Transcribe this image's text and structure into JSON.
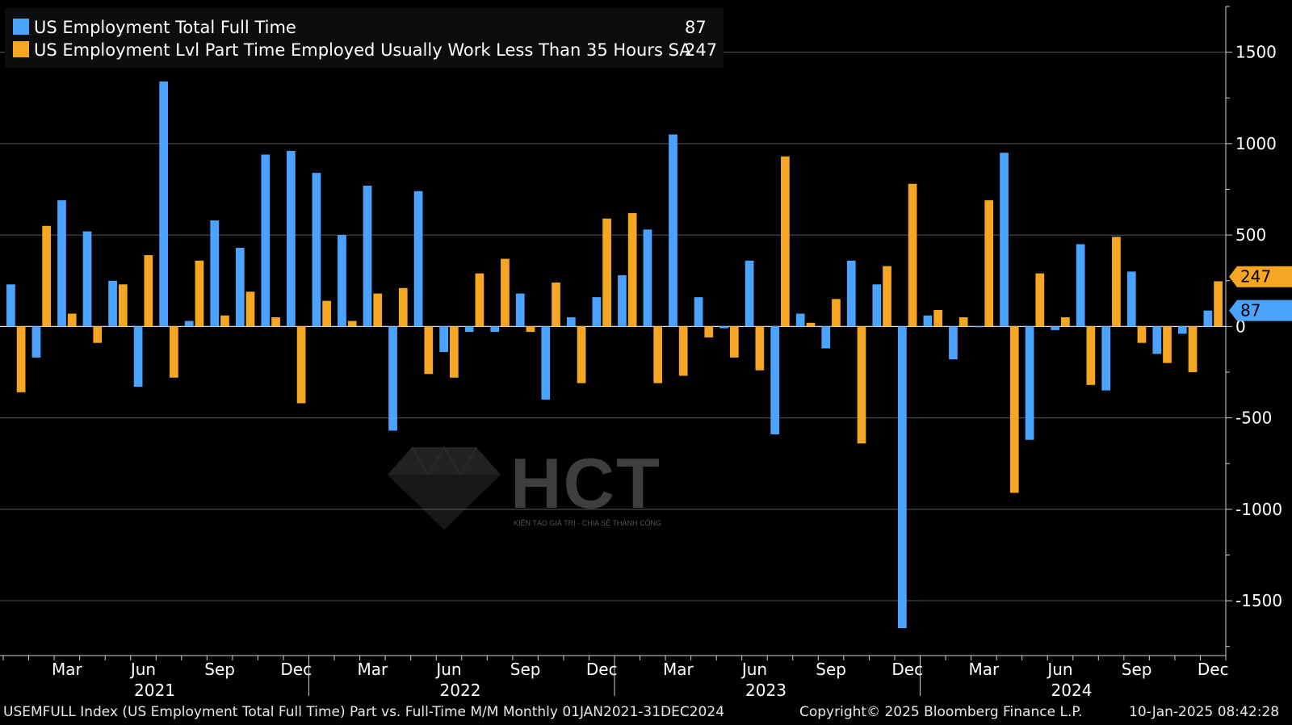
{
  "chart_data": {
    "type": "bar",
    "months": [
      "Jan 2021",
      "Feb 2021",
      "Mar 2021",
      "Apr 2021",
      "May 2021",
      "Jun 2021",
      "Jul 2021",
      "Aug 2021",
      "Sep 2021",
      "Oct 2021",
      "Nov 2021",
      "Dec 2021",
      "Jan 2022",
      "Feb 2022",
      "Mar 2022",
      "Apr 2022",
      "May 2022",
      "Jun 2022",
      "Jul 2022",
      "Aug 2022",
      "Sep 2022",
      "Oct 2022",
      "Nov 2022",
      "Dec 2022",
      "Jan 2023",
      "Feb 2023",
      "Mar 2023",
      "Apr 2023",
      "May 2023",
      "Jun 2023",
      "Jul 2023",
      "Aug 2023",
      "Sep 2023",
      "Oct 2023",
      "Nov 2023",
      "Dec 2023",
      "Jan 2024",
      "Feb 2024",
      "Mar 2024",
      "Apr 2024",
      "May 2024",
      "Jun 2024",
      "Jul 2024",
      "Aug 2024",
      "Sep 2024",
      "Oct 2024",
      "Nov 2024",
      "Dec 2024"
    ],
    "series": [
      {
        "name": "US Employment Total Full Time",
        "color": "#4aa3ff",
        "values": [
          230,
          -170,
          690,
          520,
          250,
          -330,
          1340,
          30,
          580,
          430,
          940,
          960,
          840,
          500,
          770,
          -570,
          740,
          -140,
          -30,
          -30,
          180,
          -400,
          50,
          160,
          280,
          530,
          1050,
          160,
          -10,
          360,
          -590,
          70,
          -120,
          360,
          230,
          -1650,
          60,
          -180,
          0,
          950,
          -620,
          -20,
          450,
          -350,
          300,
          -150,
          -40,
          87
        ]
      },
      {
        "name": "US Employment Lvl Part Time Employed Usually Work Less Than 35 Hours SA",
        "color": "#f5a623",
        "values": [
          -360,
          550,
          70,
          -90,
          230,
          390,
          -280,
          360,
          60,
          190,
          50,
          -420,
          140,
          30,
          180,
          210,
          -260,
          -280,
          290,
          370,
          -30,
          240,
          -310,
          590,
          620,
          -310,
          -270,
          -60,
          -170,
          -240,
          930,
          20,
          150,
          -640,
          330,
          780,
          90,
          50,
          690,
          -910,
          290,
          50,
          -320,
          490,
          -90,
          -200,
          -250,
          247
        ]
      }
    ],
    "last_values": [
      "87",
      "247"
    ],
    "y_ticks": [
      "1500",
      "1000",
      "500",
      "0",
      "-500",
      "-1000",
      "-1500"
    ],
    "y_tick_values": [
      1500,
      1000,
      500,
      0,
      -500,
      -1000,
      -1500
    ],
    "ylim": [
      -1800,
      1750
    ],
    "x_ticks": [
      "Mar",
      "Jun",
      "Sep",
      "Dec",
      "Mar",
      "Jun",
      "Sep",
      "Dec",
      "Mar",
      "Jun",
      "Sep",
      "Dec",
      "Mar",
      "Jun",
      "Sep",
      "Dec"
    ],
    "x_tick_months": [
      2,
      5,
      8,
      11,
      14,
      17,
      20,
      23,
      26,
      29,
      32,
      35,
      38,
      41,
      44,
      47
    ],
    "years": [
      "2021",
      "2022",
      "2023",
      "2024"
    ],
    "grid": true,
    "legend_position": "top-left"
  },
  "legend": {
    "full_time_label": "US Employment Total Full Time",
    "full_time_value": "87",
    "part_time_label": "US Employment Lvl Part Time Employed Usually Work Less Than 35 Hours SA",
    "part_time_value": "247"
  },
  "footer": {
    "left": "USEMFULL Index (US Employment Total Full Time) Part vs. Full-Time M/M  Monthly 01JAN2021-31DEC2024",
    "middle": "Copyright© 2025 Bloomberg Finance L.P.",
    "right": "10-Jan-2025 08:42:28"
  },
  "watermark": {
    "text": "HCT",
    "tagline": "KIẾN TẠO GIÁ TRỊ - CHIA SẺ THÀNH CÔNG"
  }
}
